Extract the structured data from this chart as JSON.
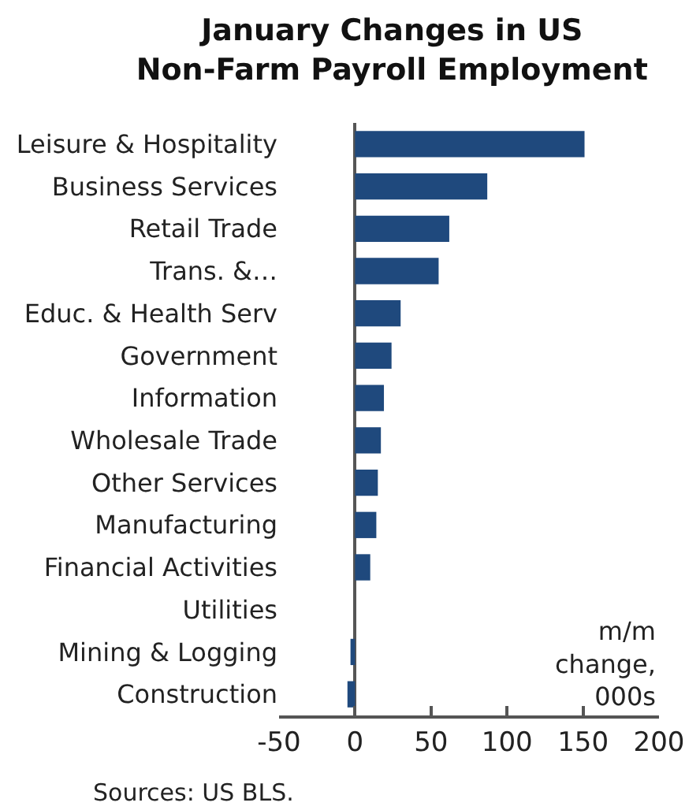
{
  "chart_data": {
    "type": "bar",
    "orientation": "horizontal",
    "title": "January Changes in US\nNon-Farm Payroll Employment",
    "categories": [
      "Leisure & Hospitality",
      "Business Services",
      "Retail Trade",
      "Trans. &…",
      "Educ. & Health Serv",
      "Government",
      "Information",
      "Wholesale Trade",
      "Other Services",
      "Manufacturing",
      "Financial Activities",
      "Utilities",
      "Mining & Logging",
      "Construction"
    ],
    "values": [
      151,
      87,
      62,
      55,
      30,
      24,
      19,
      17,
      15,
      14,
      10,
      0,
      -3,
      -5
    ],
    "color": "#1f497d",
    "xlim": [
      -50,
      200
    ],
    "xticks": [
      -50,
      0,
      50,
      100,
      150,
      200
    ],
    "xlabel": "m/m\nchange,\n000s",
    "annotations": [
      "Sources: US BLS."
    ],
    "legend": false
  }
}
